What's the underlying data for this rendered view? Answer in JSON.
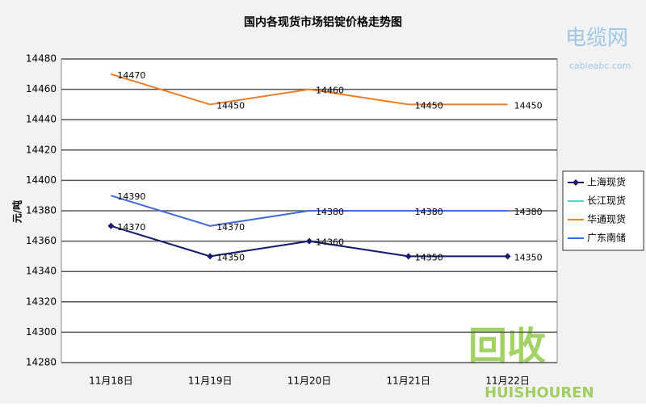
{
  "chart_data": {
    "type": "line",
    "title": "国内各现货市场铝锭价格走势图",
    "y_label": "元/吨",
    "categories": [
      "11月18日",
      "11月19日",
      "11月20日",
      "11月21日",
      "11月22日"
    ],
    "series": [
      {
        "name": "上海现货",
        "color": "#1a1a6e",
        "marker": "diamond",
        "show_labels": true,
        "values": [
          14370,
          14350,
          14360,
          14350,
          14350
        ]
      },
      {
        "name": "长江现货",
        "color": "#5ecfcf",
        "marker": "none",
        "show_labels": false,
        "values": [
          14370,
          14350,
          14360,
          14350,
          14350
        ]
      },
      {
        "name": "华通现货",
        "color": "#f07d24",
        "marker": "none",
        "show_labels": true,
        "values": [
          14470,
          14450,
          14460,
          14450,
          14450
        ]
      },
      {
        "name": "广东南储",
        "color": "#4169e1",
        "marker": "none",
        "show_labels": true,
        "values": [
          14390,
          14370,
          14380,
          14380,
          14380
        ]
      }
    ],
    "ylim": [
      14280,
      14480
    ],
    "yticks": [
      14280,
      14300,
      14320,
      14340,
      14360,
      14380,
      14400,
      14420,
      14440,
      14460,
      14480
    ],
    "grid": true,
    "legend": "right",
    "watermarks": [
      "电缆网",
      "cableabc.com",
      "回收",
      "HUISHOUREN"
    ]
  }
}
